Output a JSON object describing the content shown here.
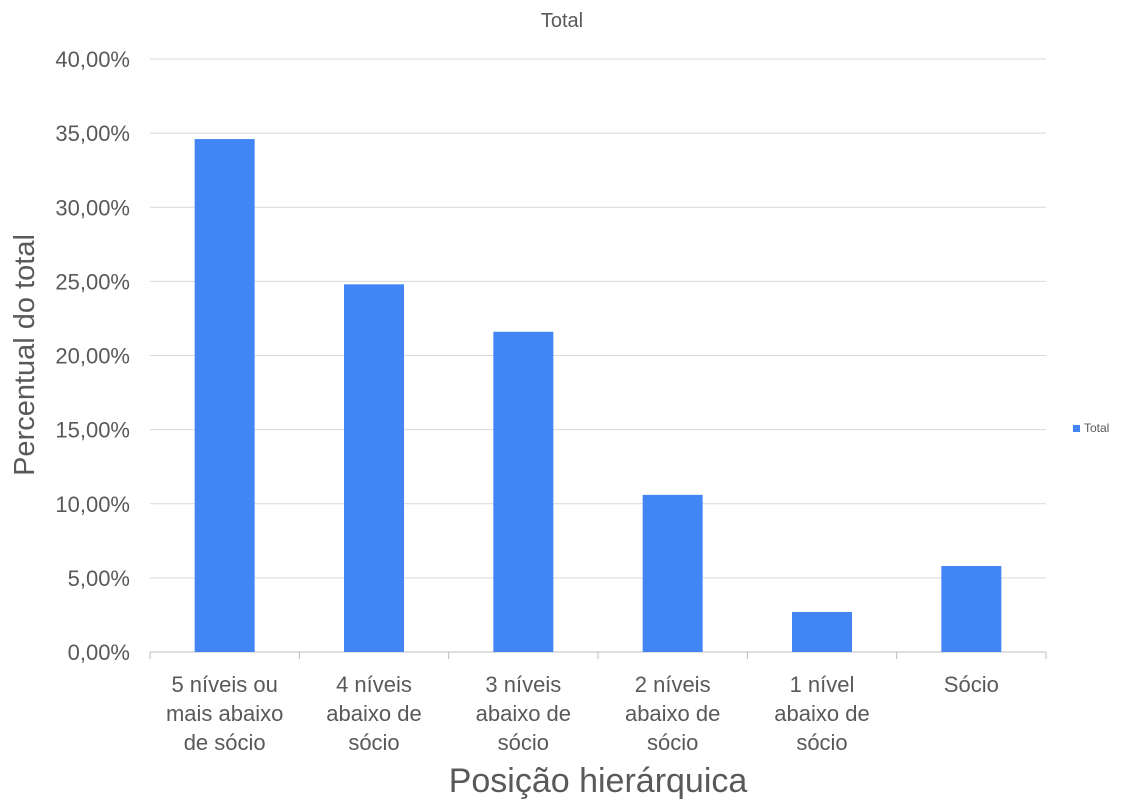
{
  "chart_data": {
    "type": "bar",
    "title": "Total",
    "xlabel": "Posição hierárquica",
    "ylabel": "Percentual do total",
    "categories": [
      [
        "5 níveis ou",
        "mais abaixo",
        "de sócio"
      ],
      [
        "4 níveis",
        "abaixo de",
        "sócio"
      ],
      [
        "3 níveis",
        "abaixo de",
        "sócio"
      ],
      [
        "2 níveis",
        "abaixo de",
        "sócio"
      ],
      [
        "1 nível",
        "abaixo de",
        "sócio"
      ],
      [
        "Sócio"
      ]
    ],
    "series": [
      {
        "name": "Total",
        "color": "#4285f4",
        "values": [
          34.6,
          24.8,
          21.6,
          10.6,
          2.7,
          5.8
        ]
      }
    ],
    "ylim": [
      0,
      40
    ],
    "yticks": [
      "0,00%",
      "5,00%",
      "10,00%",
      "15,00%",
      "20,00%",
      "25,00%",
      "30,00%",
      "35,00%",
      "40,00%"
    ],
    "ytick_values": [
      0,
      5,
      10,
      15,
      20,
      25,
      30,
      35,
      40
    ],
    "grid": true,
    "legend_position": "right"
  }
}
